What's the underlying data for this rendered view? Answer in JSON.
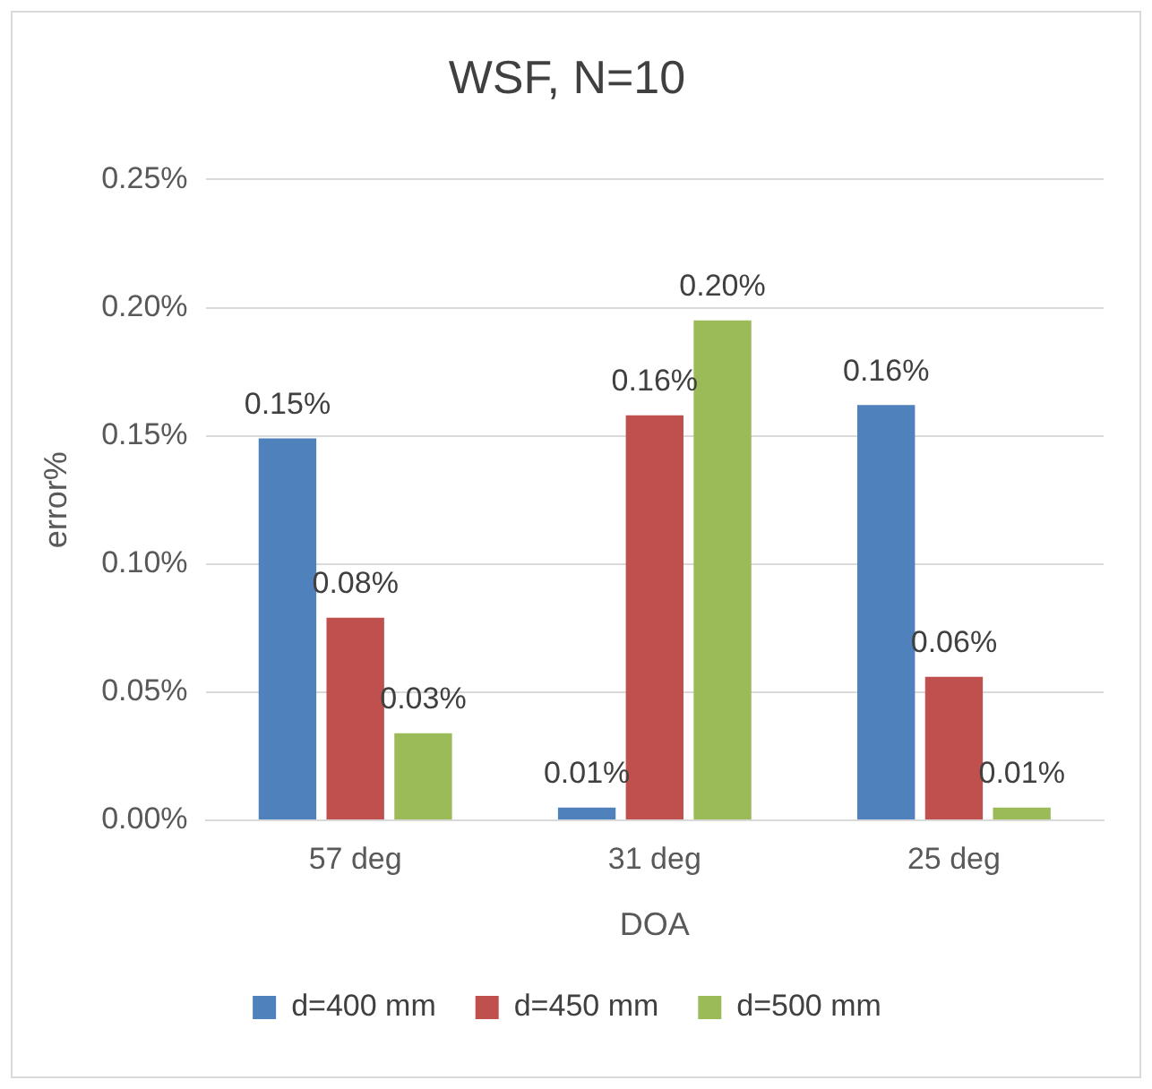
{
  "chart_data": {
    "type": "bar",
    "title": "WSF, N=10",
    "xlabel": "DOA",
    "ylabel": "error%",
    "categories": [
      "57 deg",
      "31 deg",
      "25 deg"
    ],
    "series": [
      {
        "name": "d=400 mm",
        "color": "#4f81bd",
        "values": [
          0.149,
          0.005,
          0.162
        ],
        "value_labels": [
          "0.15%",
          "0.01%",
          "0.16%"
        ]
      },
      {
        "name": "d=450 mm",
        "color": "#c0504d",
        "values": [
          0.079,
          0.158,
          0.056
        ],
        "value_labels": [
          "0.08%",
          "0.16%",
          "0.06%"
        ]
      },
      {
        "name": "d=500 mm",
        "color": "#9bbb59",
        "values": [
          0.034,
          0.195,
          0.005
        ],
        "value_labels": [
          "0.03%",
          "0.20%",
          "0.01%"
        ]
      }
    ],
    "ylim": [
      0,
      0.25
    ],
    "yticks": [
      {
        "value": 0,
        "label": "0.00%"
      },
      {
        "value": 0.05,
        "label": "0.05%"
      },
      {
        "value": 0.1,
        "label": "0.10%"
      },
      {
        "value": 0.15,
        "label": "0.15%"
      },
      {
        "value": 0.2,
        "label": "0.20%"
      },
      {
        "value": 0.25,
        "label": "0.25%"
      }
    ],
    "grid": "y",
    "legend": "bottom"
  }
}
